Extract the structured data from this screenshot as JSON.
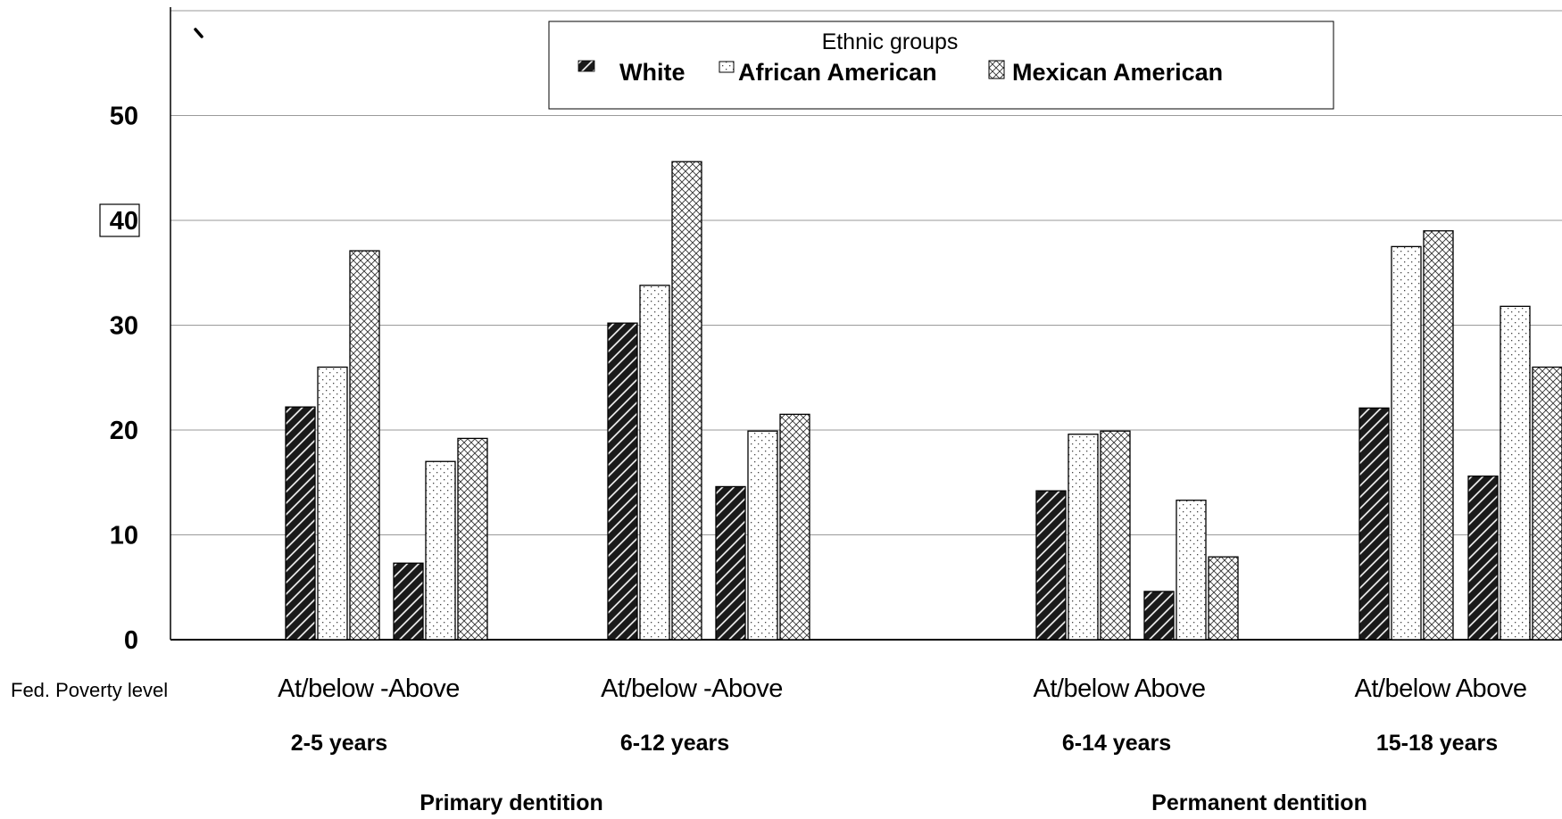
{
  "chart_data": {
    "type": "bar",
    "ylim": [
      0,
      60
    ],
    "yticks": [
      0,
      10,
      20,
      30,
      40,
      50
    ],
    "grid": true,
    "legend": {
      "title": "Ethnic groups",
      "placement": "top-center"
    },
    "x_row_label": "Fed. Poverty level",
    "series": [
      {
        "name": "White",
        "pattern": "dark-diagonal"
      },
      {
        "name": "African American",
        "pattern": "dotted"
      },
      {
        "name": "Mexican American",
        "pattern": "crosshatch"
      }
    ],
    "groups": [
      {
        "age": "2-5 years",
        "poverty_label": "At/below -Above",
        "dentition": "Primary dentition",
        "subgroups": [
          {
            "level": "At/below",
            "values": [
              22.2,
              26.0,
              37.1
            ]
          },
          {
            "level": "Above",
            "values": [
              7.3,
              17.0,
              19.2
            ]
          }
        ]
      },
      {
        "age": "6-12 years",
        "poverty_label": "At/below -Above",
        "dentition": "Primary dentition",
        "subgroups": [
          {
            "level": "At/below",
            "values": [
              30.2,
              33.8,
              45.6
            ]
          },
          {
            "level": "Above",
            "values": [
              14.6,
              19.9,
              21.5
            ]
          }
        ]
      },
      {
        "age": "6-14 years",
        "poverty_label": "At/below Above",
        "dentition": "Permanent dentition",
        "subgroups": [
          {
            "level": "At/below",
            "values": [
              14.2,
              19.6,
              19.9
            ]
          },
          {
            "level": "Above",
            "values": [
              4.6,
              13.3,
              7.9
            ]
          }
        ]
      },
      {
        "age": "15-18 years",
        "poverty_label": "At/below Above",
        "dentition": "Permanent dentition",
        "subgroups": [
          {
            "level": "At/below",
            "values": [
              22.1,
              37.5,
              39.0
            ]
          },
          {
            "level": "Above",
            "values": [
              15.6,
              31.8,
              26.0
            ]
          }
        ]
      }
    ],
    "dentition_labels": [
      "Primary dentition",
      "Permanent dentition"
    ]
  }
}
